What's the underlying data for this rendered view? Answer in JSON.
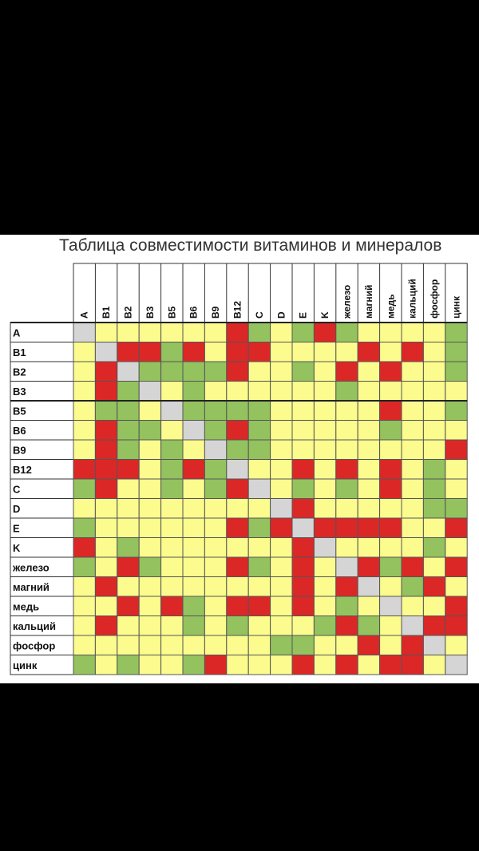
{
  "title": "Таблица совместимости витаминов и минералов",
  "chart_data": {
    "type": "heatmap",
    "rows": [
      "A",
      "B1",
      "B2",
      "B3",
      "B5",
      "B6",
      "B9",
      "B12",
      "C",
      "D",
      "E",
      "K",
      "железо",
      "магний",
      "медь",
      "кальций",
      "фосфор",
      "цинк"
    ],
    "cols": [
      "A",
      "B1",
      "B2",
      "B3",
      "B5",
      "B6",
      "B9",
      "B12",
      "C",
      "D",
      "E",
      "K",
      "железо",
      "магний",
      "медь",
      "кальций",
      "фосфор",
      "цинк"
    ],
    "colors": {
      "R": "#dc2727",
      "G": "#93c25e",
      "Y": "#fbfb8e",
      "X": "#d5d5d5"
    },
    "legend_semantics": {
      "R": "red",
      "G": "green",
      "Y": "yellow",
      "X": "grey"
    },
    "matrix": [
      "XYYYYYYRGYGRGYYYYG",
      "YXRRGRYRRYYYYRYRYG",
      "YRXGGGGRYYGYRYRYYG",
      "YRGXYGYYYYYYGYYYYY",
      "YGGYXGGGGYYYYYRYYG",
      "YRGGYXGRGYYYYYGYYY",
      "YRGYGYXGGYYYYYYYYR",
      "RRRYGRGXYYRYRYRYGY",
      "GRYYGYGRXYGYGYRYGY",
      "YYYYYYYYYXRYYYYYGG",
      "GYYYYYYRGRXRRRRYYR",
      "RYGYYYYYYYRXYYYYGY",
      "GYRGYYYRGYRYXRGRYR",
      "YRYYYYYYYYRYRXYGRY",
      "YYRYRGYRRYRYGYXYYR",
      "YRYYYGYGYYYGRGYXRR",
      "YYYYYYYYYGGYYRYRXY",
      "GYGYYGRYYYRYRYRRYX"
    ],
    "diagonal": "grey"
  }
}
